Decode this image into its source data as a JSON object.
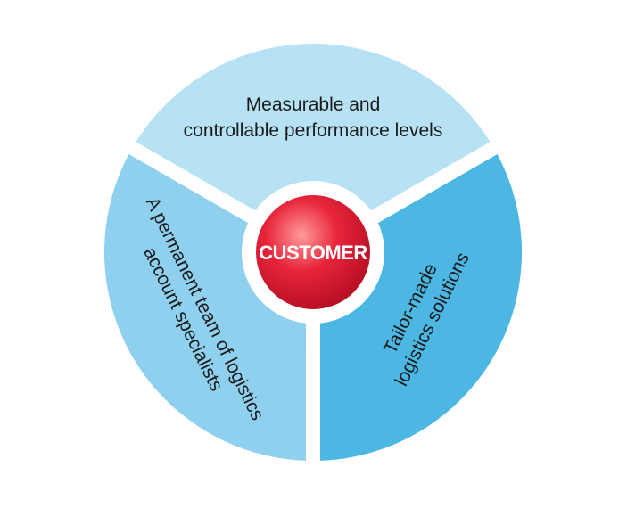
{
  "center": {
    "label": "CUSTOMER"
  },
  "segments": [
    {
      "id": "top",
      "lines": [
        "Measurable and",
        "controllable performance levels"
      ],
      "color": "#b7e2f4"
    },
    {
      "id": "left",
      "lines": [
        "A permanent team of logistics",
        "account specialists"
      ],
      "color": "#8fd0ef"
    },
    {
      "id": "right",
      "lines": [
        "Tailor-made",
        "logistics solutions"
      ],
      "color": "#4cb7e3"
    }
  ],
  "colors": {
    "ring_gap": "#ffffff",
    "center_gradient_inner": "#ff8a8a",
    "center_gradient_outer": "#c8102e"
  }
}
